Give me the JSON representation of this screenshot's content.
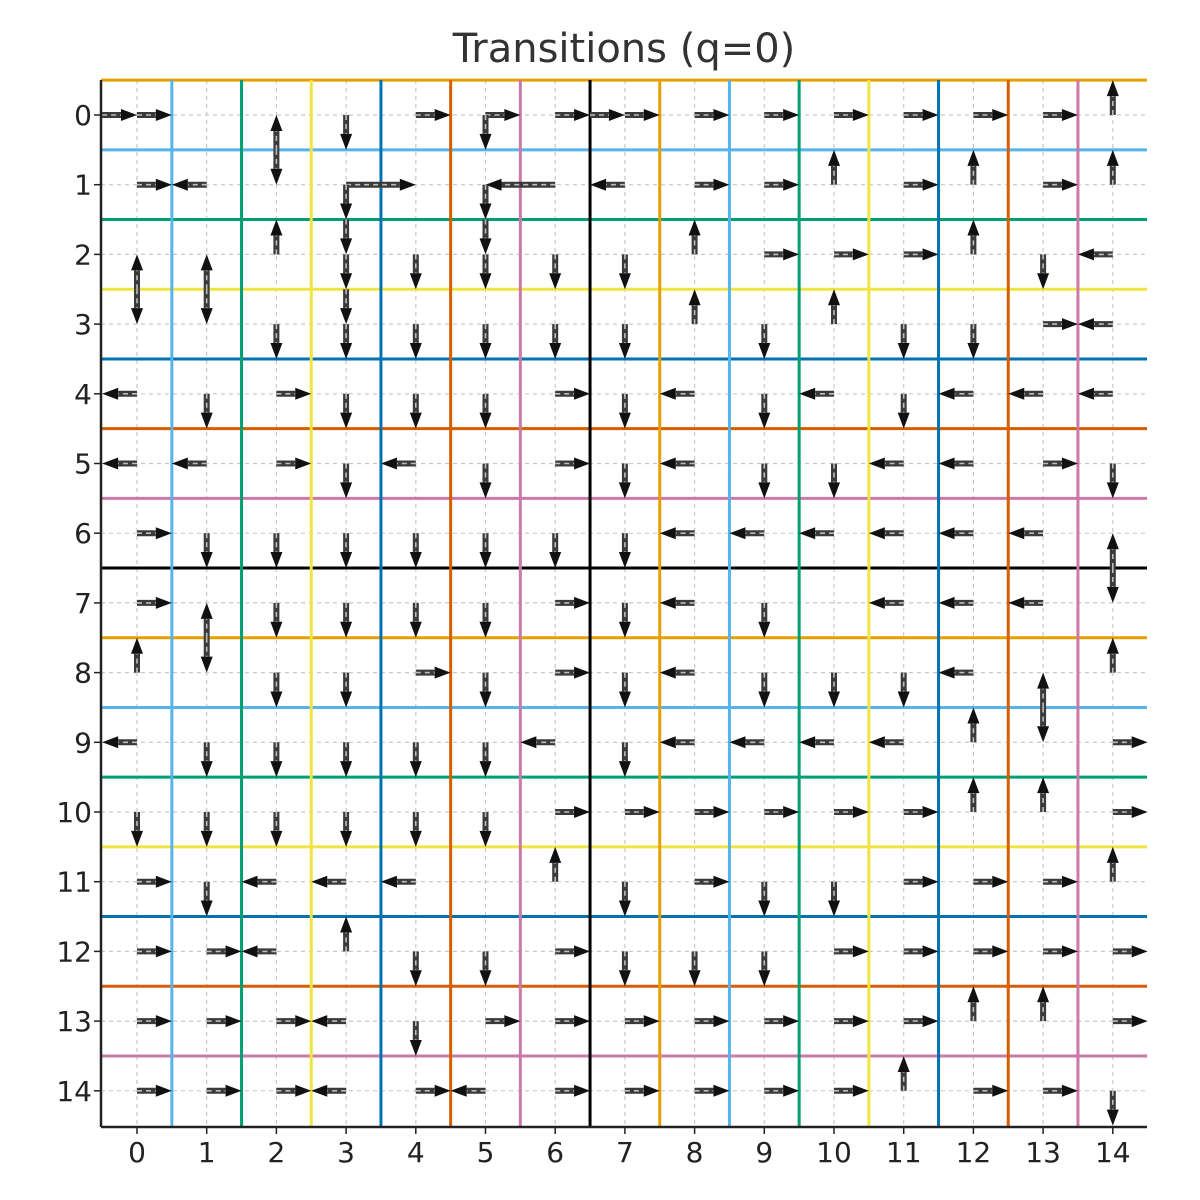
{
  "title": "Transitions (q=0)",
  "xticks": [
    "0",
    "1",
    "2",
    "3",
    "4",
    "5",
    "6",
    "7",
    "8",
    "9",
    "10",
    "11",
    "12",
    "13",
    "14"
  ],
  "yticks": [
    "0",
    "1",
    "2",
    "3",
    "4",
    "5",
    "6",
    "7",
    "8",
    "9",
    "10",
    "11",
    "12",
    "13",
    "14"
  ],
  "grid": {
    "size": 15,
    "minor_gridlines": true
  },
  "separators": {
    "colors": [
      "#E69F00",
      "#56B4E9",
      "#009E73",
      "#F0E442",
      "#0072B2",
      "#D55E00",
      "#CC79A7",
      "#000000",
      "#E69F00",
      "#56B4E9",
      "#009E73",
      "#F0E442",
      "#0072B2",
      "#D55E00",
      "#CC79A7"
    ],
    "horizontal_at": [
      -0.5,
      0.5,
      1.5,
      2.5,
      3.5,
      4.5,
      5.5,
      6.5,
      7.5,
      8.5,
      9.5,
      10.5,
      11.5,
      12.5,
      13.5
    ],
    "vertical_at": [
      0.5,
      1.5,
      2.5,
      3.5,
      4.5,
      5.5,
      6.5,
      7.5,
      8.5,
      9.5,
      10.5,
      11.5,
      12.5,
      13.5
    ]
  },
  "transitions": [
    [
      -0.5,
      0,
      0,
      0
    ],
    [
      0,
      0,
      0.5,
      0
    ],
    [
      4,
      0,
      4.5,
      0
    ],
    [
      5,
      0,
      5.5,
      0
    ],
    [
      6,
      0,
      6.5,
      0
    ],
    [
      6.5,
      0,
      7,
      0
    ],
    [
      7,
      0,
      7.5,
      0
    ],
    [
      8,
      0,
      8.5,
      0
    ],
    [
      9,
      0,
      9.5,
      0
    ],
    [
      10,
      0,
      10.5,
      0
    ],
    [
      11,
      0,
      11.5,
      0
    ],
    [
      12,
      0,
      12.5,
      0
    ],
    [
      13,
      0,
      13.5,
      0
    ],
    [
      14,
      0,
      14,
      -0.5
    ],
    [
      2,
      0.5,
      2,
      0
    ],
    [
      2,
      0.5,
      2,
      1
    ],
    [
      3,
      0,
      3,
      0.5
    ],
    [
      5,
      0,
      5,
      0.5
    ],
    [
      10,
      1,
      10,
      0.5
    ],
    [
      12,
      1,
      12,
      0.5
    ],
    [
      14,
      1,
      14,
      0.5
    ],
    [
      0,
      1,
      0.5,
      1
    ],
    [
      1,
      1,
      0.5,
      1
    ],
    [
      3,
      1,
      4,
      1
    ],
    [
      6,
      1,
      5,
      1
    ],
    [
      7,
      1,
      6.5,
      1
    ],
    [
      8,
      1,
      8.5,
      1
    ],
    [
      9,
      1,
      9.5,
      1
    ],
    [
      11,
      1,
      11.5,
      1
    ],
    [
      13,
      1,
      13.5,
      1
    ],
    [
      2,
      2,
      2,
      1.5
    ],
    [
      3,
      1,
      3,
      1.5
    ],
    [
      5,
      1,
      5,
      1.5
    ],
    [
      8,
      2,
      8,
      1.5
    ],
    [
      12,
      2,
      12,
      1.5
    ],
    [
      3,
      1.5,
      3,
      2
    ],
    [
      5,
      1.5,
      5,
      2
    ],
    [
      9,
      2,
      9.5,
      2
    ],
    [
      10,
      2,
      10.5,
      2
    ],
    [
      11,
      2,
      11.5,
      2
    ],
    [
      14,
      2,
      13.5,
      2
    ],
    [
      0,
      2.5,
      0,
      2
    ],
    [
      0,
      2.5,
      0,
      3
    ],
    [
      1,
      2.5,
      1,
      2
    ],
    [
      1,
      2.5,
      1,
      3
    ],
    [
      8,
      3,
      8,
      2.5
    ],
    [
      10,
      3,
      10,
      2.5
    ],
    [
      3,
      2,
      3,
      2.5
    ],
    [
      4,
      2,
      4,
      2.5
    ],
    [
      5,
      2,
      5,
      2.5
    ],
    [
      6,
      2,
      6,
      2.5
    ],
    [
      7,
      2,
      7,
      2.5
    ],
    [
      13,
      2,
      13,
      2.5
    ],
    [
      3,
      2.5,
      3,
      3
    ],
    [
      13,
      3,
      13.5,
      3
    ],
    [
      14,
      3,
      13.5,
      3
    ],
    [
      2,
      3,
      2,
      3.5
    ],
    [
      3,
      3,
      3,
      3.5
    ],
    [
      4,
      3,
      4,
      3.5
    ],
    [
      5,
      3,
      5,
      3.5
    ],
    [
      6,
      3,
      6,
      3.5
    ],
    [
      7,
      3,
      7,
      3.5
    ],
    [
      9,
      3,
      9,
      3.5
    ],
    [
      11,
      3,
      11,
      3.5
    ],
    [
      12,
      3,
      12,
      3.5
    ],
    [
      0,
      4,
      -0.5,
      4
    ],
    [
      2,
      4,
      2.5,
      4
    ],
    [
      6,
      4,
      6.5,
      4
    ],
    [
      8,
      4,
      7.5,
      4
    ],
    [
      10,
      4,
      9.5,
      4
    ],
    [
      12,
      4,
      11.5,
      4
    ],
    [
      13,
      4,
      12.5,
      4
    ],
    [
      14,
      4,
      13.5,
      4
    ],
    [
      1,
      4,
      1,
      4.5
    ],
    [
      3,
      4,
      3,
      4.5
    ],
    [
      4,
      4,
      4,
      4.5
    ],
    [
      5,
      4,
      5,
      4.5
    ],
    [
      7,
      4,
      7,
      4.5
    ],
    [
      9,
      4,
      9,
      4.5
    ],
    [
      11,
      4,
      11,
      4.5
    ],
    [
      0,
      5,
      -0.5,
      5
    ],
    [
      1,
      5,
      0.5,
      5
    ],
    [
      2,
      5,
      2.5,
      5
    ],
    [
      4,
      5,
      3.5,
      5
    ],
    [
      6,
      5,
      6.5,
      5
    ],
    [
      8,
      5,
      7.5,
      5
    ],
    [
      11,
      5,
      10.5,
      5
    ],
    [
      12,
      5,
      11.5,
      5
    ],
    [
      13,
      5,
      13.5,
      5
    ],
    [
      3,
      5,
      3,
      5.5
    ],
    [
      5,
      5,
      5,
      5.5
    ],
    [
      7,
      5,
      7,
      5.5
    ],
    [
      9,
      5,
      9,
      5.5
    ],
    [
      10,
      5,
      10,
      5.5
    ],
    [
      14,
      5,
      14,
      5.5
    ],
    [
      0,
      6,
      0.5,
      6
    ],
    [
      8,
      6,
      7.5,
      6
    ],
    [
      9,
      6,
      8.5,
      6
    ],
    [
      10,
      6,
      9.5,
      6
    ],
    [
      11,
      6,
      10.5,
      6
    ],
    [
      12,
      6,
      11.5,
      6
    ],
    [
      13,
      6,
      12.5,
      6
    ],
    [
      14,
      6.5,
      14,
      6
    ],
    [
      14,
      6.5,
      14,
      7
    ],
    [
      1,
      6,
      1,
      6.5
    ],
    [
      2,
      6,
      2,
      6.5
    ],
    [
      3,
      6,
      3,
      6.5
    ],
    [
      4,
      6,
      4,
      6.5
    ],
    [
      5,
      6,
      5,
      6.5
    ],
    [
      6,
      6,
      6,
      6.5
    ],
    [
      7,
      6,
      7,
      6.5
    ],
    [
      0,
      7,
      0.5,
      7
    ],
    [
      6,
      7,
      6.5,
      7
    ],
    [
      8,
      7,
      7.5,
      7
    ],
    [
      11,
      7,
      10.5,
      7
    ],
    [
      12,
      7,
      11.5,
      7
    ],
    [
      13,
      7,
      12.5,
      7
    ],
    [
      0,
      8,
      0,
      7.5
    ],
    [
      1,
      7.5,
      1,
      7
    ],
    [
      1,
      7.5,
      1,
      8
    ],
    [
      14,
      8,
      14,
      7.5
    ],
    [
      2,
      7,
      2,
      7.5
    ],
    [
      3,
      7,
      3,
      7.5
    ],
    [
      4,
      7,
      4,
      7.5
    ],
    [
      5,
      7,
      5,
      7.5
    ],
    [
      7,
      7,
      7,
      7.5
    ],
    [
      9,
      7,
      9,
      7.5
    ],
    [
      4,
      8,
      4.5,
      8
    ],
    [
      6,
      8,
      6.5,
      8
    ],
    [
      8,
      8,
      7.5,
      8
    ],
    [
      12,
      8,
      11.5,
      8
    ],
    [
      2,
      8,
      2,
      8.5
    ],
    [
      3,
      8,
      3,
      8.5
    ],
    [
      5,
      8,
      5,
      8.5
    ],
    [
      7,
      8,
      7,
      8.5
    ],
    [
      9,
      8,
      9,
      8.5
    ],
    [
      10,
      8,
      10,
      8.5
    ],
    [
      11,
      8,
      11,
      8.5
    ],
    [
      12,
      9,
      12,
      8.5
    ],
    [
      13,
      8.5,
      13,
      8
    ],
    [
      13,
      8.5,
      13,
      9
    ],
    [
      0,
      9,
      -0.5,
      9
    ],
    [
      6,
      9,
      5.5,
      9
    ],
    [
      8,
      9,
      7.5,
      9
    ],
    [
      9,
      9,
      8.5,
      9
    ],
    [
      10,
      9,
      9.5,
      9
    ],
    [
      11,
      9,
      10.5,
      9
    ],
    [
      14,
      9,
      14.5,
      9
    ],
    [
      1,
      9,
      1,
      9.5
    ],
    [
      2,
      9,
      2,
      9.5
    ],
    [
      3,
      9,
      3,
      9.5
    ],
    [
      4,
      9,
      4,
      9.5
    ],
    [
      5,
      9,
      5,
      9.5
    ],
    [
      7,
      9,
      7,
      9.5
    ],
    [
      12,
      10,
      12,
      9.5
    ],
    [
      13,
      10,
      13,
      9.5
    ],
    [
      6,
      10,
      6.5,
      10
    ],
    [
      7,
      10,
      7.5,
      10
    ],
    [
      8,
      10,
      8.5,
      10
    ],
    [
      9,
      10,
      9.5,
      10
    ],
    [
      10,
      10,
      10.5,
      10
    ],
    [
      11,
      10,
      11.5,
      10
    ],
    [
      14,
      10,
      14.5,
      10
    ],
    [
      0,
      10,
      0,
      10.5
    ],
    [
      1,
      10,
      1,
      10.5
    ],
    [
      2,
      10,
      2,
      10.5
    ],
    [
      3,
      10,
      3,
      10.5
    ],
    [
      4,
      10,
      4,
      10.5
    ],
    [
      5,
      10,
      5,
      10.5
    ],
    [
      6,
      11,
      6,
      10.5
    ],
    [
      14,
      11,
      14,
      10.5
    ],
    [
      0,
      11,
      0.5,
      11
    ],
    [
      2,
      11,
      1.5,
      11
    ],
    [
      3,
      11,
      2.5,
      11
    ],
    [
      4,
      11,
      3.5,
      11
    ],
    [
      8,
      11,
      8.5,
      11
    ],
    [
      11,
      11,
      11.5,
      11
    ],
    [
      12,
      11,
      12.5,
      11
    ],
    [
      13,
      11,
      13.5,
      11
    ],
    [
      1,
      11,
      1,
      11.5
    ],
    [
      3,
      12,
      3,
      11.5
    ],
    [
      7,
      11,
      7,
      11.5
    ],
    [
      9,
      11,
      9,
      11.5
    ],
    [
      10,
      11,
      10,
      11.5
    ],
    [
      0,
      12,
      0.5,
      12
    ],
    [
      1,
      12,
      1.5,
      12
    ],
    [
      2,
      12,
      1.5,
      12
    ],
    [
      6,
      12,
      6.5,
      12
    ],
    [
      10,
      12,
      10.5,
      12
    ],
    [
      11,
      12,
      11.5,
      12
    ],
    [
      12,
      12,
      12.5,
      12
    ],
    [
      13,
      12,
      13.5,
      12
    ],
    [
      14,
      12,
      14.5,
      12
    ],
    [
      4,
      12,
      4,
      12.5
    ],
    [
      5,
      12,
      5,
      12.5
    ],
    [
      7,
      12,
      7,
      12.5
    ],
    [
      8,
      12,
      8,
      12.5
    ],
    [
      9,
      12,
      9,
      12.5
    ],
    [
      12,
      13,
      12,
      12.5
    ],
    [
      13,
      13,
      13,
      12.5
    ],
    [
      0,
      13,
      0.5,
      13
    ],
    [
      1,
      13,
      1.5,
      13
    ],
    [
      2,
      13,
      2.5,
      13
    ],
    [
      3,
      13,
      2.5,
      13
    ],
    [
      5,
      13,
      5.5,
      13
    ],
    [
      6,
      13,
      6.5,
      13
    ],
    [
      7,
      13,
      7.5,
      13
    ],
    [
      8,
      13,
      8.5,
      13
    ],
    [
      9,
      13,
      9.5,
      13
    ],
    [
      10,
      13,
      10.5,
      13
    ],
    [
      11,
      13,
      11.5,
      13
    ],
    [
      14,
      13,
      14.5,
      13
    ],
    [
      4,
      13,
      4,
      13.5
    ],
    [
      11,
      14,
      11,
      13.5
    ],
    [
      0,
      14,
      0.5,
      14
    ],
    [
      1,
      14,
      1.5,
      14
    ],
    [
      2,
      14,
      2.5,
      14
    ],
    [
      3,
      14,
      2.5,
      14
    ],
    [
      4,
      14,
      4.5,
      14
    ],
    [
      5,
      14,
      4.5,
      14
    ],
    [
      6,
      14,
      6.5,
      14
    ],
    [
      7,
      14,
      7.5,
      14
    ],
    [
      8,
      14,
      8.5,
      14
    ],
    [
      9,
      14,
      9.5,
      14
    ],
    [
      10,
      14,
      10.5,
      14
    ],
    [
      12,
      14,
      12.5,
      14
    ],
    [
      13,
      14,
      13.5,
      14
    ],
    [
      14,
      14,
      14,
      14.5
    ]
  ]
}
